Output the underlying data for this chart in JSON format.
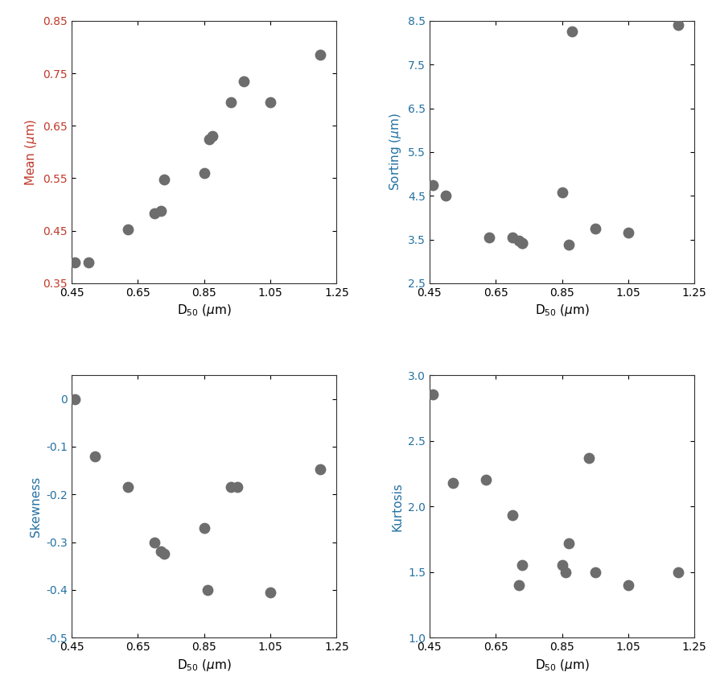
{
  "mean_x": [
    0.46,
    0.5,
    0.62,
    0.7,
    0.72,
    0.73,
    0.85,
    0.865,
    0.875,
    0.93,
    0.97,
    1.05,
    1.2
  ],
  "mean_y": [
    0.39,
    0.39,
    0.453,
    0.484,
    0.488,
    0.548,
    0.56,
    0.625,
    0.63,
    0.695,
    0.735,
    0.695,
    0.785
  ],
  "sorting_x": [
    0.46,
    0.5,
    0.63,
    0.7,
    0.72,
    0.73,
    0.73,
    0.85,
    0.87,
    0.88,
    0.95,
    1.05,
    1.2
  ],
  "sorting_y": [
    4.75,
    4.5,
    3.55,
    3.55,
    3.47,
    3.42,
    3.42,
    4.57,
    3.38,
    8.25,
    3.75,
    3.65,
    8.4
  ],
  "skewness_x": [
    0.46,
    0.52,
    0.62,
    0.7,
    0.72,
    0.73,
    0.85,
    0.86,
    0.93,
    0.95,
    1.05,
    1.2
  ],
  "skewness_y": [
    0.0,
    -0.12,
    -0.185,
    -0.3,
    -0.32,
    -0.325,
    -0.27,
    -0.4,
    -0.185,
    -0.185,
    -0.405,
    -0.148
  ],
  "kurtosis_x": [
    0.46,
    0.52,
    0.62,
    0.7,
    0.72,
    0.73,
    0.85,
    0.86,
    0.87,
    0.93,
    0.95,
    1.05,
    1.2
  ],
  "kurtosis_y": [
    2.85,
    2.18,
    2.2,
    1.93,
    1.4,
    1.55,
    1.55,
    1.5,
    1.72,
    2.37,
    1.5,
    1.4,
    1.5
  ],
  "dot_color": "#6d6d6d",
  "dot_size": 80,
  "xlim": [
    0.45,
    1.25
  ],
  "xticks": [
    0.45,
    0.65,
    0.85,
    1.05,
    1.25
  ],
  "xtick_labels": [
    "0.45",
    "0.65",
    "0.85",
    "1.05",
    "1.25"
  ],
  "mean_ylim": [
    0.35,
    0.85
  ],
  "mean_yticks": [
    0.35,
    0.45,
    0.55,
    0.65,
    0.75,
    0.85
  ],
  "mean_ytick_labels": [
    "0.35",
    "0.45",
    "0.55",
    "0.65",
    "0.75",
    "0.85"
  ],
  "sorting_ylim": [
    2.5,
    8.5
  ],
  "sorting_yticks": [
    2.5,
    3.5,
    4.5,
    5.5,
    6.5,
    7.5,
    8.5
  ],
  "sorting_ytick_labels": [
    "2.5",
    "3.5",
    "4.5",
    "5.5",
    "6.5",
    "7.5",
    "8.5"
  ],
  "skewness_ylim": [
    -0.5,
    0.05
  ],
  "skewness_yticks": [
    -0.5,
    -0.4,
    -0.3,
    -0.2,
    -0.1,
    0.0
  ],
  "skewness_ytick_labels": [
    "-0.5",
    "-0.4",
    "-0.3",
    "-0.2",
    "-0.1",
    "0"
  ],
  "kurtosis_ylim": [
    1.0,
    3.0
  ],
  "kurtosis_yticks": [
    1.0,
    1.5,
    2.0,
    2.5,
    3.0
  ],
  "kurtosis_ytick_labels": [
    "1.0",
    "1.5",
    "2.0",
    "2.5",
    "3.0"
  ],
  "color_red": "#c0392b",
  "color_blue": "#2471a3",
  "spine_color": "#333333"
}
